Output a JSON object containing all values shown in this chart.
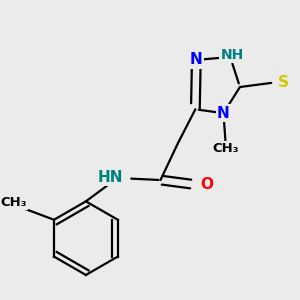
{
  "bg_color": "#ebebeb",
  "colors": {
    "N": "#0000ff",
    "O": "#ff0000",
    "S": "#cccc00",
    "NH": "#008080",
    "C": "#000000"
  },
  "bond_lw": 1.6,
  "font_size": 11,
  "font_size_small": 9.5,
  "figsize": [
    3.0,
    3.0
  ],
  "dpi": 100,
  "xlim": [
    0,
    300
  ],
  "ylim": [
    0,
    300
  ]
}
